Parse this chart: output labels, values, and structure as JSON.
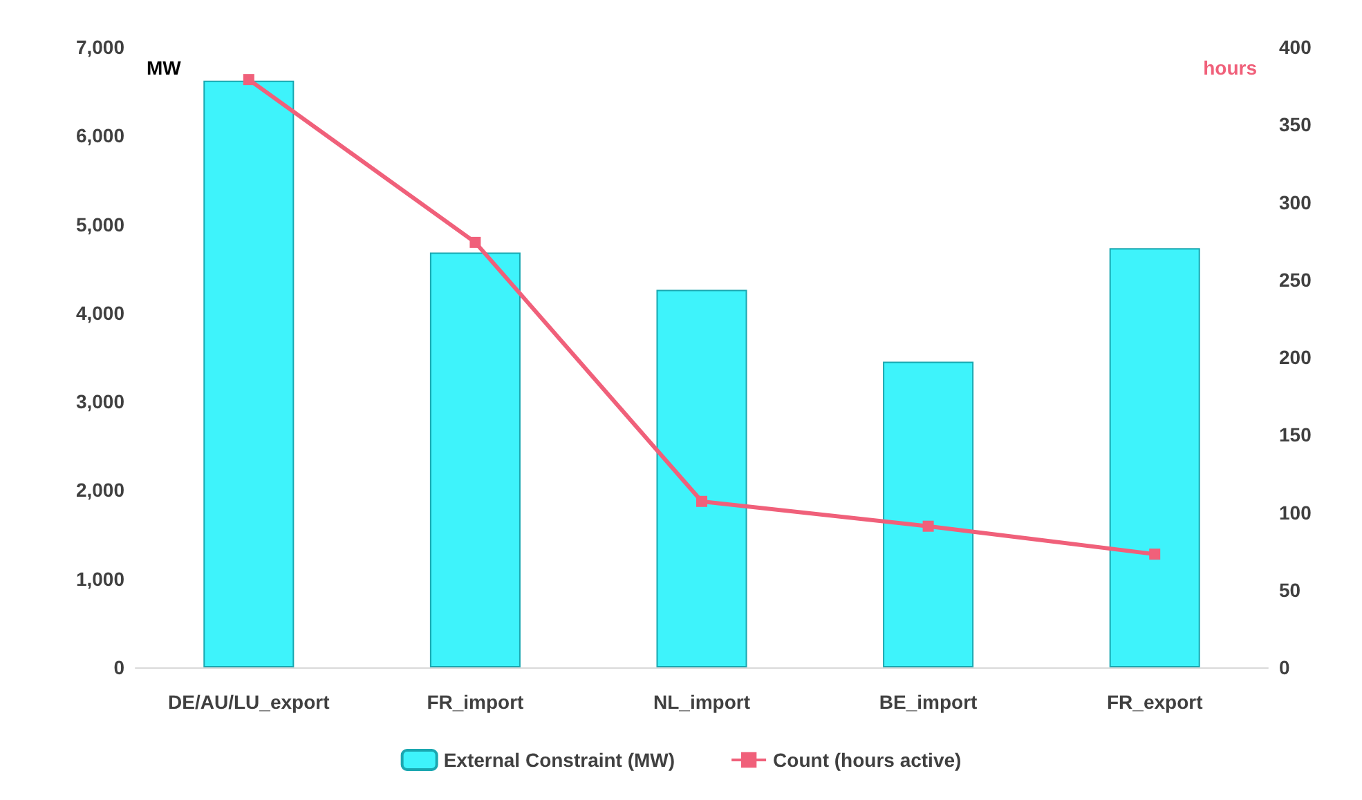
{
  "chart_data": {
    "type": "bar",
    "ylabel": "MW",
    "y2label": "hours",
    "categories": [
      "DE/AU/LU_export",
      "FR_import",
      "NL_import",
      "BE_import",
      "FR_export"
    ],
    "series": [
      {
        "name": "External Constraint (MW)",
        "color": "#3ef3fb",
        "values": [
          6620,
          4680,
          4260,
          3450,
          4730
        ]
      },
      {
        "name": "Count (hours active)",
        "type": "line",
        "axis": "y2",
        "color": "#f0607a",
        "marker": "square",
        "values": [
          379,
          274,
          107,
          91,
          73
        ]
      }
    ],
    "ylim": [
      0,
      7000
    ],
    "yticks": [
      0,
      {
        "value": 1000,
        "label": "1,000"
      },
      {
        "value": 2000,
        "label": "2,000"
      },
      {
        "value": 3000,
        "label": "3,000"
      },
      {
        "value": 4000,
        "label": "4,000"
      },
      {
        "value": 5000,
        "label": "5,000"
      },
      {
        "value": 6000,
        "label": "6,000"
      },
      {
        "value": 7000,
        "label": "7,000"
      }
    ],
    "y2lim": [
      0,
      400
    ],
    "y2ticks": [
      0,
      50,
      100,
      150,
      200,
      250,
      300,
      350,
      400
    ],
    "grid": false,
    "legend": "bottom"
  }
}
